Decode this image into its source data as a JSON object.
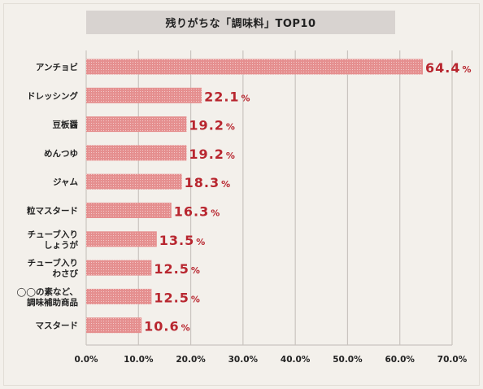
{
  "chart_data": {
    "type": "bar",
    "orientation": "horizontal",
    "title": "残りがちな「調味料」TOP10",
    "categories": [
      [
        "アンチョビ"
      ],
      [
        "ドレッシング"
      ],
      [
        "豆板醤"
      ],
      [
        "めんつゆ"
      ],
      [
        "ジャム"
      ],
      [
        "粒マスタード"
      ],
      [
        "チューブ入り",
        "しょうが"
      ],
      [
        "チューブ入り",
        "わさび"
      ],
      [
        "◯◯の素など、",
        "調味補助商品"
      ],
      [
        "マスタード"
      ]
    ],
    "values": [
      64.4,
      22.1,
      19.2,
      19.2,
      18.3,
      16.3,
      13.5,
      12.5,
      12.5,
      10.6
    ],
    "value_labels": [
      "64.4",
      "22.1",
      "19.2",
      "19.2",
      "18.3",
      "16.3",
      "13.5",
      "12.5",
      "12.5",
      "10.6"
    ],
    "value_unit": "%",
    "xlim": [
      0,
      70
    ],
    "xticks": [
      "0.0%",
      "10.0%",
      "20.0%",
      "30.0%",
      "40.0%",
      "50.0%",
      "60.0%",
      "70.0%"
    ],
    "grid": true,
    "colors": {
      "bar": "#e58f8f",
      "bar_dot": "#f3c9c9",
      "value_text": "#b8262f",
      "grid": "#c9c4bf"
    }
  }
}
